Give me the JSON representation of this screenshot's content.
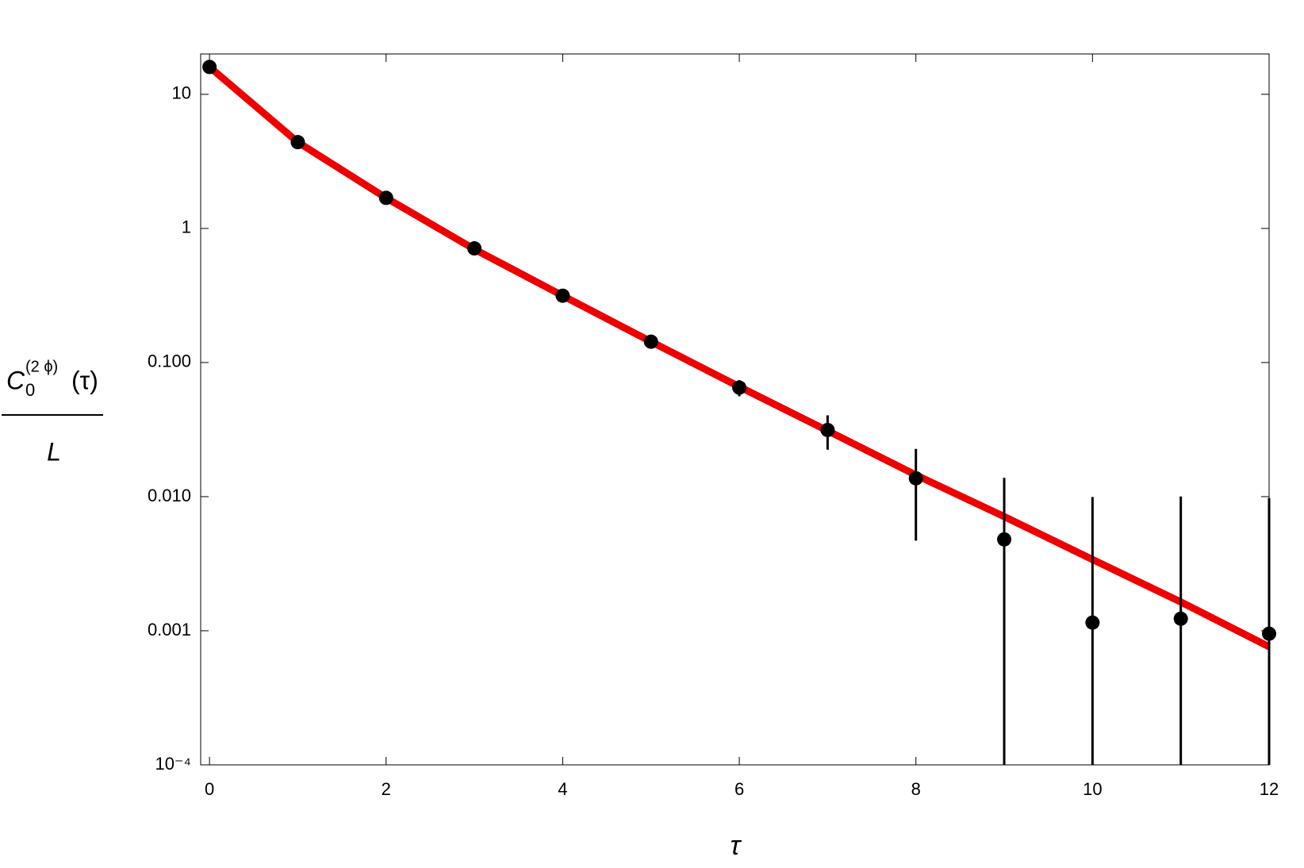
{
  "chart_data": {
    "type": "scatter",
    "x_label": "τ",
    "y_label_main": "C",
    "y_label_sub": "0",
    "y_label_sup": "(2 ϕ)",
    "y_label_arg": "(τ)",
    "y_label_denominator": "L",
    "log_y": true,
    "xlim": [
      -0.1,
      12
    ],
    "ylim": [
      0.0001,
      20
    ],
    "xticks": [
      0,
      2,
      4,
      6,
      8,
      10,
      12
    ],
    "yticks": [
      10,
      1,
      {
        "value": 0.1,
        "label": "0.100"
      },
      {
        "value": 0.01,
        "label": "0.010"
      },
      {
        "value": 0.001,
        "label": "0.001"
      },
      {
        "value": 0.0001,
        "label": "10⁻⁴"
      }
    ],
    "series": [
      {
        "kind": "line",
        "color": "#ee0000",
        "x": [
          0,
          1,
          2,
          3,
          4,
          5,
          6,
          7,
          8,
          9,
          10,
          11,
          12
        ],
        "values": [
          16,
          4.4,
          1.69,
          0.7,
          0.315,
          0.143,
          0.066,
          0.031,
          0.0145,
          0.0071,
          0.0034,
          0.00164,
          0.00076
        ]
      },
      {
        "kind": "points",
        "color": "#000000",
        "x": [
          0,
          1,
          2,
          3,
          4,
          5,
          6,
          7,
          8,
          9,
          10,
          11,
          12
        ],
        "values": [
          16,
          4.4,
          1.69,
          0.71,
          0.315,
          0.143,
          0.065,
          0.0314,
          0.0137,
          0.0048,
          0.00115,
          0.00123,
          0.00095
        ],
        "errors": [
          0.009,
          0.009,
          0.009,
          0.009,
          0.009,
          0.009,
          0.009,
          0.009,
          0.009,
          0.009,
          0.0088,
          0.0088,
          0.0088
        ]
      }
    ]
  }
}
